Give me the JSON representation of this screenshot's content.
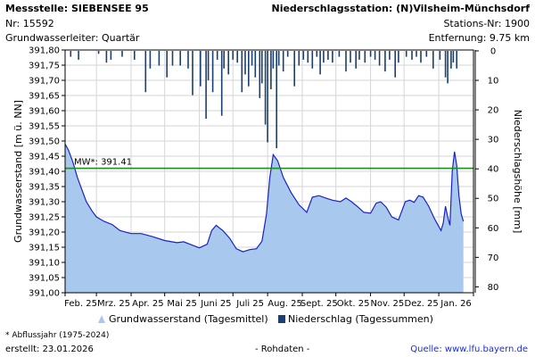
{
  "header": {
    "station_title": "Messstelle: SIEBENSEE 95",
    "station_nr": "Nr: 15592",
    "aquifer": "Grundwasserleiter: Quartär",
    "precip_title": "Niederschlagsstation: (N)Vilsheim-Münchsdorf",
    "precip_nr": "Stations-Nr: 1900",
    "distance": "Entfernung: 9.75 km"
  },
  "footer": {
    "footnote": "* Abflussjahr (1975-2024)",
    "created": "erstellt:  23.01.2026",
    "rawdata": "- Rohdaten -",
    "source": "Quelle: www.lfu.bayern.de"
  },
  "colors": {
    "area_fill": "#a9c8ee",
    "line": "#1a22c8",
    "mean_line": "#1e8c1e",
    "precip_bar": "#1b3f6e",
    "grid": "#d6d6d6"
  },
  "chart_data": {
    "type": "area",
    "ylabel": "Grundwasserstand [m ü. NN]",
    "y2label": "Niederschlagshöhe [mm]",
    "ylim": [
      391.0,
      391.8
    ],
    "yticks": [
      "391,00",
      "391,05",
      "391,10",
      "391,15",
      "391,20",
      "391,25",
      "391,30",
      "391,35",
      "391,40",
      "391,45",
      "391,50",
      "391,55",
      "391,60",
      "391,65",
      "391,70",
      "391,75",
      "391,80"
    ],
    "y2lim": [
      0,
      82
    ],
    "y2ticks": [
      "0",
      "10",
      "20",
      "30",
      "40",
      "50",
      "60",
      "70",
      "80"
    ],
    "x_range": [
      "2025-02-01",
      "2026-02-01"
    ],
    "month_labels": [
      "Feb. 25",
      "Mrz. 25",
      "Apr. 25",
      "Mai 25",
      "Juni 25",
      "Juli 25",
      "Aug. 25",
      "Sept. 25",
      "Okt. 25",
      "Nov. 25",
      "Dez. 25",
      "Jan. 26"
    ],
    "grid": true,
    "mean_label": "MW*: 391.41",
    "mean_value": 391.41,
    "legend": [
      "Grundwasserstand (Tagesmittel)",
      "Niederschlag (Tagessummen)"
    ],
    "legend_position": "bottom",
    "series": [
      {
        "name": "Grundwasserstand (Tagesmittel)",
        "points": [
          [
            "2025-02-01",
            391.49
          ],
          [
            "2025-02-04",
            391.47
          ],
          [
            "2025-02-08",
            391.43
          ],
          [
            "2025-02-12",
            391.38
          ],
          [
            "2025-02-16",
            391.34
          ],
          [
            "2025-02-20",
            391.3
          ],
          [
            "2025-02-25",
            391.27
          ],
          [
            "2025-03-01",
            391.25
          ],
          [
            "2025-03-08",
            391.235
          ],
          [
            "2025-03-15",
            391.225
          ],
          [
            "2025-03-22",
            391.205
          ],
          [
            "2025-04-01",
            391.195
          ],
          [
            "2025-04-10",
            391.195
          ],
          [
            "2025-04-20",
            391.185
          ],
          [
            "2025-05-01",
            391.172
          ],
          [
            "2025-05-12",
            391.165
          ],
          [
            "2025-05-18",
            391.168
          ],
          [
            "2025-05-25",
            391.158
          ],
          [
            "2025-06-01",
            391.148
          ],
          [
            "2025-06-08",
            391.16
          ],
          [
            "2025-06-12",
            391.205
          ],
          [
            "2025-06-16",
            391.222
          ],
          [
            "2025-06-22",
            391.205
          ],
          [
            "2025-06-28",
            391.18
          ],
          [
            "2025-07-04",
            391.145
          ],
          [
            "2025-07-10",
            391.135
          ],
          [
            "2025-07-16",
            391.142
          ],
          [
            "2025-07-22",
            391.145
          ],
          [
            "2025-07-27",
            391.17
          ],
          [
            "2025-07-31",
            391.26
          ],
          [
            "2025-08-03",
            391.38
          ],
          [
            "2025-08-06",
            391.455
          ],
          [
            "2025-08-10",
            391.435
          ],
          [
            "2025-08-15",
            391.38
          ],
          [
            "2025-08-22",
            391.33
          ],
          [
            "2025-08-29",
            391.29
          ],
          [
            "2025-09-05",
            391.265
          ],
          [
            "2025-09-10",
            391.315
          ],
          [
            "2025-09-16",
            391.32
          ],
          [
            "2025-09-22",
            391.312
          ],
          [
            "2025-09-28",
            391.305
          ],
          [
            "2025-10-05",
            391.3
          ],
          [
            "2025-10-10",
            391.312
          ],
          [
            "2025-10-15",
            391.3
          ],
          [
            "2025-10-20",
            391.285
          ],
          [
            "2025-10-26",
            391.265
          ],
          [
            "2025-11-01",
            391.262
          ],
          [
            "2025-11-06",
            391.295
          ],
          [
            "2025-11-10",
            391.3
          ],
          [
            "2025-11-15",
            391.282
          ],
          [
            "2025-11-20",
            391.25
          ],
          [
            "2025-11-26",
            391.24
          ],
          [
            "2025-12-02",
            391.3
          ],
          [
            "2025-12-06",
            391.305
          ],
          [
            "2025-12-10",
            391.298
          ],
          [
            "2025-12-14",
            391.32
          ],
          [
            "2025-12-18",
            391.315
          ],
          [
            "2025-12-23",
            391.285
          ],
          [
            "2025-12-28",
            391.245
          ],
          [
            "2026-01-03",
            391.205
          ],
          [
            "2026-01-05",
            391.23
          ],
          [
            "2026-01-07",
            391.285
          ],
          [
            "2026-01-09",
            391.25
          ],
          [
            "2026-01-11",
            391.222
          ],
          [
            "2026-01-13",
            391.4
          ],
          [
            "2026-01-15",
            391.465
          ],
          [
            "2026-01-17",
            391.42
          ],
          [
            "2026-01-19",
            391.32
          ],
          [
            "2026-01-21",
            391.26
          ],
          [
            "2026-01-23",
            391.235
          ]
        ]
      },
      {
        "name": "Niederschlag (Tagessummen)",
        "points": [
          [
            "2025-02-06",
            2
          ],
          [
            "2025-02-13",
            3
          ],
          [
            "2025-03-03",
            1
          ],
          [
            "2025-03-10",
            4
          ],
          [
            "2025-03-14",
            3
          ],
          [
            "2025-03-24",
            2
          ],
          [
            "2025-04-04",
            3
          ],
          [
            "2025-04-14",
            14
          ],
          [
            "2025-04-18",
            6
          ],
          [
            "2025-04-26",
            5
          ],
          [
            "2025-05-03",
            9
          ],
          [
            "2025-05-08",
            5
          ],
          [
            "2025-05-15",
            5
          ],
          [
            "2025-05-22",
            6
          ],
          [
            "2025-05-26",
            15
          ],
          [
            "2025-06-02",
            12
          ],
          [
            "2025-06-07",
            23
          ],
          [
            "2025-06-09",
            10
          ],
          [
            "2025-06-13",
            14
          ],
          [
            "2025-06-17",
            3
          ],
          [
            "2025-06-21",
            22
          ],
          [
            "2025-06-23",
            6
          ],
          [
            "2025-06-27",
            8
          ],
          [
            "2025-07-01",
            3
          ],
          [
            "2025-07-05",
            4
          ],
          [
            "2025-07-09",
            14
          ],
          [
            "2025-07-12",
            8
          ],
          [
            "2025-07-15",
            12
          ],
          [
            "2025-07-18",
            5
          ],
          [
            "2025-07-21",
            9
          ],
          [
            "2025-07-25",
            16
          ],
          [
            "2025-07-27",
            11
          ],
          [
            "2025-07-30",
            25
          ],
          [
            "2025-08-01",
            31
          ],
          [
            "2025-08-04",
            13
          ],
          [
            "2025-08-06",
            6
          ],
          [
            "2025-08-09",
            33
          ],
          [
            "2025-08-11",
            5
          ],
          [
            "2025-08-15",
            7
          ],
          [
            "2025-08-19",
            2
          ],
          [
            "2025-08-25",
            12
          ],
          [
            "2025-08-29",
            5
          ],
          [
            "2025-09-02",
            3
          ],
          [
            "2025-09-06",
            4
          ],
          [
            "2025-09-10",
            6
          ],
          [
            "2025-09-14",
            2
          ],
          [
            "2025-09-17",
            8
          ],
          [
            "2025-09-20",
            4
          ],
          [
            "2025-09-24",
            3
          ],
          [
            "2025-09-28",
            4
          ],
          [
            "2025-10-04",
            2
          ],
          [
            "2025-10-10",
            7
          ],
          [
            "2025-10-14",
            4
          ],
          [
            "2025-10-19",
            6
          ],
          [
            "2025-10-22",
            3
          ],
          [
            "2025-10-27",
            4
          ],
          [
            "2025-11-01",
            2
          ],
          [
            "2025-11-05",
            3
          ],
          [
            "2025-11-09",
            5
          ],
          [
            "2025-11-14",
            7
          ],
          [
            "2025-11-18",
            3
          ],
          [
            "2025-11-23",
            9
          ],
          [
            "2025-11-26",
            4
          ],
          [
            "2025-12-03",
            2
          ],
          [
            "2025-12-08",
            3
          ],
          [
            "2025-12-12",
            2
          ],
          [
            "2025-12-16",
            4
          ],
          [
            "2025-12-21",
            2
          ],
          [
            "2025-12-27",
            6
          ],
          [
            "2026-01-02",
            3
          ],
          [
            "2026-01-07",
            9
          ],
          [
            "2026-01-09",
            11
          ],
          [
            "2026-01-12",
            6
          ],
          [
            "2026-01-14",
            4
          ],
          [
            "2026-01-17",
            6
          ]
        ]
      }
    ]
  }
}
